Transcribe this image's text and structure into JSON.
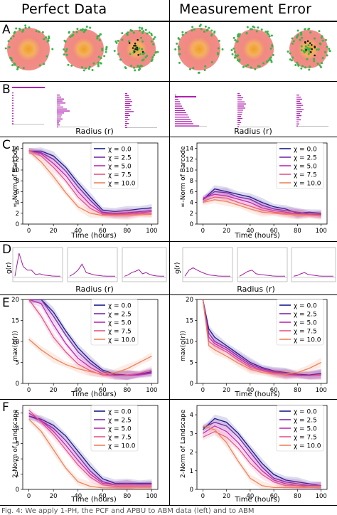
{
  "columns": {
    "left_title": "Perfect Data",
    "right_title": "Measurement Error"
  },
  "panels": {
    "A": "A",
    "B": "B",
    "C": "C",
    "D": "D",
    "E": "E",
    "F": "F"
  },
  "labels": {
    "radius": "Radius (r)",
    "time": "Time (hours)",
    "c_ylabel": "∞-Norm of Barcode",
    "d_ylabel": "g(r)",
    "e_ylabel": "max(g(r))",
    "f_ylabel": "2-Norm of Landscape"
  },
  "legend": [
    "χ = 0.0",
    "χ = 2.5",
    "χ = 5.0",
    "χ = 7.5",
    "χ = 10.0"
  ],
  "colors": [
    "#1a1a8c",
    "#7a2aa8",
    "#c02ab4",
    "#e8548c",
    "#f0825a"
  ],
  "caption": "Fig. 4: We apply 1-PH, the PCF and APBU to ABM data (left) and to ABM",
  "chart_data": [
    {
      "type": "line",
      "panel": "C-left",
      "xlabel": "Time (hours)",
      "ylabel": "∞-Norm of Barcode",
      "xlim": [
        -5,
        105
      ],
      "ylim": [
        0,
        15
      ],
      "xticks": [
        0,
        20,
        40,
        60,
        80,
        100
      ],
      "yticks": [
        0,
        2,
        4,
        6,
        8,
        10,
        12,
        14
      ],
      "x": [
        0,
        10,
        20,
        30,
        40,
        50,
        60,
        70,
        80,
        90,
        100
      ],
      "series": [
        {
          "name": "χ = 0.0",
          "values": [
            13.5,
            13.5,
            12.6,
            10.5,
            7.6,
            5.0,
            2.6,
            2.3,
            2.5,
            2.8,
            3.0
          ]
        },
        {
          "name": "χ = 2.5",
          "values": [
            13.5,
            13.2,
            12.0,
            9.8,
            6.9,
            4.4,
            2.2,
            2.0,
            2.1,
            2.3,
            2.5
          ]
        },
        {
          "name": "χ = 5.0",
          "values": [
            13.6,
            13.0,
            11.2,
            9.0,
            6.0,
            3.6,
            2.0,
            1.8,
            2.0,
            2.1,
            2.3
          ]
        },
        {
          "name": "χ = 7.5",
          "values": [
            13.6,
            12.6,
            10.5,
            8.0,
            5.0,
            2.9,
            1.8,
            1.7,
            1.8,
            1.9,
            2.0
          ]
        },
        {
          "name": "χ = 10.0",
          "values": [
            13.5,
            11.5,
            8.8,
            5.8,
            3.2,
            2.0,
            1.6,
            1.6,
            1.6,
            1.7,
            1.8
          ]
        }
      ]
    },
    {
      "type": "line",
      "panel": "C-right",
      "xlabel": "Time (hours)",
      "ylabel": "∞-Norm of Barcode",
      "xlim": [
        -5,
        105
      ],
      "ylim": [
        0,
        15
      ],
      "xticks": [
        0,
        20,
        40,
        60,
        80,
        100
      ],
      "yticks": [
        0,
        2,
        4,
        6,
        8,
        10,
        12,
        14
      ],
      "x": [
        0,
        10,
        20,
        30,
        40,
        50,
        60,
        70,
        80,
        90,
        100
      ],
      "series": [
        {
          "name": "χ = 0.0",
          "values": [
            4.5,
            6.5,
            6.0,
            5.5,
            5.0,
            4.0,
            3.2,
            2.8,
            2.0,
            2.2,
            2.0
          ]
        },
        {
          "name": "χ = 2.5",
          "values": [
            4.5,
            6.0,
            5.8,
            5.0,
            4.6,
            3.5,
            2.8,
            2.5,
            2.2,
            1.9,
            1.8
          ]
        },
        {
          "name": "χ = 5.0",
          "values": [
            4.8,
            5.5,
            5.2,
            4.6,
            4.0,
            3.0,
            2.5,
            2.2,
            1.9,
            1.8,
            1.7
          ]
        },
        {
          "name": "χ = 7.5",
          "values": [
            4.2,
            5.0,
            4.8,
            4.0,
            3.3,
            2.6,
            2.2,
            2.0,
            1.8,
            1.7,
            1.6
          ]
        },
        {
          "name": "χ = 10.0",
          "values": [
            4.0,
            4.5,
            4.2,
            3.5,
            2.8,
            2.2,
            2.0,
            1.8,
            1.7,
            1.6,
            1.5
          ]
        }
      ]
    },
    {
      "type": "line",
      "panel": "E-left",
      "xlabel": "Time (hours)",
      "ylabel": "max(g(r))",
      "xlim": [
        -5,
        105
      ],
      "ylim": [
        0,
        20
      ],
      "xticks": [
        0,
        20,
        40,
        60,
        80,
        100
      ],
      "yticks": [
        0,
        5,
        10,
        15,
        20
      ],
      "x": [
        0,
        10,
        20,
        30,
        40,
        50,
        60,
        70,
        80,
        90,
        100
      ],
      "series": [
        {
          "name": "χ = 0.0",
          "values": [
            20,
            20,
            17,
            12.5,
            8.5,
            5.5,
            3.2,
            2.2,
            2.0,
            2.2,
            2.8
          ]
        },
        {
          "name": "χ = 2.5",
          "values": [
            20,
            20,
            16,
            11.5,
            7.5,
            4.8,
            2.8,
            2.0,
            1.9,
            2.1,
            2.6
          ]
        },
        {
          "name": "χ = 5.0",
          "values": [
            20,
            19,
            14,
            9.5,
            6.0,
            3.8,
            2.3,
            1.8,
            1.9,
            2.0,
            2.4
          ]
        },
        {
          "name": "χ = 7.5",
          "values": [
            20,
            16,
            11,
            7.5,
            4.6,
            3.0,
            2.0,
            1.8,
            2.0,
            2.4,
            3.2
          ]
        },
        {
          "name": "χ = 10.0",
          "values": [
            10.5,
            8.0,
            6.0,
            4.5,
            3.5,
            2.8,
            2.2,
            2.5,
            3.5,
            5.0,
            6.5
          ]
        }
      ]
    },
    {
      "type": "line",
      "panel": "E-right",
      "xlabel": "Time (hours)",
      "ylabel": "max(g(r))",
      "xlim": [
        -5,
        105
      ],
      "ylim": [
        0,
        20
      ],
      "xticks": [
        0,
        20,
        40,
        60,
        80,
        100
      ],
      "yticks": [
        0,
        5,
        10,
        15,
        20
      ],
      "x": [
        0,
        5,
        10,
        20,
        30,
        40,
        50,
        60,
        70,
        80,
        90,
        100
      ],
      "series": [
        {
          "name": "χ = 0.0",
          "values": [
            20,
            13,
            11,
            9,
            7,
            5,
            3.8,
            3.0,
            2.6,
            2.2,
            2.0,
            2.4
          ]
        },
        {
          "name": "χ = 2.5",
          "values": [
            20,
            12,
            10,
            8.5,
            6.5,
            4.6,
            3.5,
            2.8,
            2.4,
            2.0,
            1.9,
            2.2
          ]
        },
        {
          "name": "χ = 5.0",
          "values": [
            20,
            11,
            9.5,
            8,
            6,
            4.2,
            3.2,
            2.6,
            2.2,
            1.9,
            1.8,
            2.0
          ]
        },
        {
          "name": "χ = 7.5",
          "values": [
            20,
            10,
            9,
            7.5,
            5.5,
            3.8,
            3.0,
            2.4,
            2.0,
            1.8,
            1.8,
            2.1
          ]
        },
        {
          "name": "χ = 10.0",
          "values": [
            20,
            9,
            8,
            6.5,
            4.8,
            3.4,
            2.6,
            2.2,
            2.2,
            2.6,
            3.6,
            5.0
          ]
        }
      ]
    },
    {
      "type": "line",
      "panel": "F-left",
      "xlabel": "Time (hours)",
      "ylabel": "2-Norm of Landscape",
      "xlim": [
        -5,
        105
      ],
      "ylim": [
        0,
        5.5
      ],
      "xticks": [
        0,
        20,
        40,
        60,
        80,
        100
      ],
      "yticks": [
        0,
        1,
        2,
        3,
        4,
        5
      ],
      "x": [
        0,
        10,
        20,
        30,
        40,
        50,
        60,
        70,
        80,
        90,
        100
      ],
      "series": [
        {
          "name": "χ = 0.0",
          "values": [
            4.8,
            4.6,
            4.2,
            3.5,
            2.5,
            1.5,
            0.7,
            0.4,
            0.4,
            0.4,
            0.4
          ]
        },
        {
          "name": "χ = 2.5",
          "values": [
            4.8,
            4.5,
            4.0,
            3.2,
            2.2,
            1.2,
            0.5,
            0.3,
            0.3,
            0.3,
            0.3
          ]
        },
        {
          "name": "χ = 5.0",
          "values": [
            5.0,
            4.5,
            3.8,
            2.9,
            1.9,
            1.0,
            0.4,
            0.3,
            0.3,
            0.3,
            0.3
          ]
        },
        {
          "name": "χ = 7.5",
          "values": [
            5.2,
            4.4,
            3.6,
            2.6,
            1.6,
            0.8,
            0.3,
            0.2,
            0.2,
            0.2,
            0.2
          ]
        },
        {
          "name": "χ = 10.0",
          "values": [
            4.6,
            3.8,
            2.6,
            1.4,
            0.5,
            0.2,
            0.1,
            0.1,
            0.1,
            0.1,
            0.1
          ]
        }
      ]
    },
    {
      "type": "line",
      "panel": "F-right",
      "xlabel": "Time (hours)",
      "ylabel": "2-Norm of Landscape",
      "xlim": [
        -5,
        105
      ],
      "ylim": [
        0,
        4.5
      ],
      "xticks": [
        0,
        20,
        40,
        60,
        80,
        100
      ],
      "yticks": [
        0,
        1,
        2,
        3,
        4
      ],
      "x": [
        0,
        10,
        20,
        30,
        40,
        50,
        60,
        70,
        80,
        90,
        100
      ],
      "series": [
        {
          "name": "χ = 0.0",
          "values": [
            3.2,
            3.8,
            3.6,
            3.0,
            2.2,
            1.4,
            0.8,
            0.5,
            0.4,
            0.3,
            0.2
          ]
        },
        {
          "name": "χ = 2.5",
          "values": [
            3.3,
            3.6,
            3.4,
            2.8,
            2.0,
            1.2,
            0.6,
            0.4,
            0.3,
            0.2,
            0.2
          ]
        },
        {
          "name": "χ = 5.0",
          "values": [
            3.0,
            3.4,
            3.1,
            2.5,
            1.7,
            1.0,
            0.5,
            0.3,
            0.2,
            0.2,
            0.2
          ]
        },
        {
          "name": "χ = 7.5",
          "values": [
            2.8,
            3.1,
            2.8,
            2.2,
            1.4,
            0.8,
            0.4,
            0.2,
            0.2,
            0.1,
            0.1
          ]
        },
        {
          "name": "χ = 10.0",
          "values": [
            3.4,
            3.2,
            2.5,
            1.5,
            0.6,
            0.2,
            0.1,
            0.1,
            0.1,
            0.1,
            0.1
          ]
        }
      ]
    },
    {
      "type": "line",
      "panel": "D",
      "xlabel": "Radius (r)",
      "ylabel": "g(r)",
      "insets": [
        [
          0.05,
          1.0,
          0.45,
          0.3,
          0.3,
          0.12,
          0.15,
          0.1,
          0.08,
          0.06,
          0.05,
          0.05
        ],
        [
          0.05,
          0.15,
          0.3,
          0.55,
          0.2,
          0.15,
          0.1,
          0.08,
          0.06,
          0.05,
          0.05,
          0.05
        ],
        [
          0.05,
          0.1,
          0.2,
          0.25,
          0.32,
          0.15,
          0.2,
          0.12,
          0.08,
          0.06,
          0.05,
          0.05
        ],
        [
          0.05,
          0.3,
          0.4,
          0.3,
          0.22,
          0.15,
          0.1,
          0.08,
          0.06,
          0.05,
          0.05,
          0.05
        ],
        [
          0.05,
          0.15,
          0.25,
          0.3,
          0.15,
          0.12,
          0.1,
          0.08,
          0.06,
          0.05,
          0.05,
          0.05
        ],
        [
          0.05,
          0.08,
          0.15,
          0.2,
          0.12,
          0.1,
          0.08,
          0.06,
          0.05,
          0.05,
          0.05,
          0.05
        ]
      ]
    }
  ]
}
